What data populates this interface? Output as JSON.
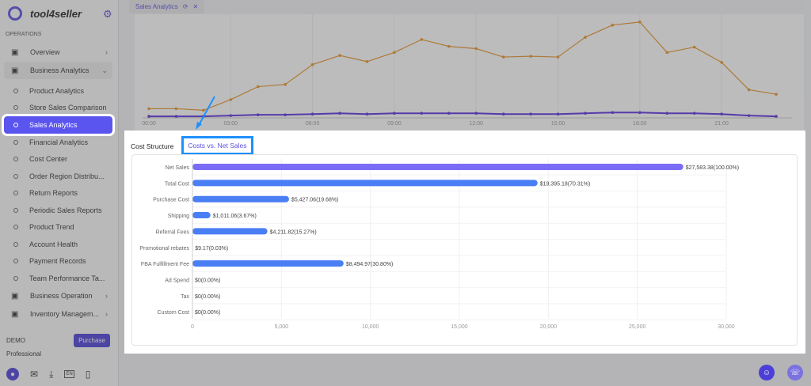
{
  "app": {
    "name": "tool4seller"
  },
  "sidebar": {
    "section": "OPERATIONS",
    "items": [
      {
        "label": "Overview",
        "icon": "home-icon",
        "type": "group"
      },
      {
        "label": "Business Analytics",
        "icon": "presentation-icon",
        "type": "group-open"
      },
      {
        "label": "Product Analytics",
        "type": "sub"
      },
      {
        "label": "Store Sales Comparison",
        "type": "sub"
      },
      {
        "label": "Sales Analytics",
        "type": "sub",
        "active": true
      },
      {
        "label": "Financial Analytics",
        "type": "sub"
      },
      {
        "label": "Cost Center",
        "type": "sub"
      },
      {
        "label": "Order Region Distribu...",
        "type": "sub"
      },
      {
        "label": "Return Reports",
        "type": "sub"
      },
      {
        "label": "Periodic Sales Reports",
        "type": "sub"
      },
      {
        "label": "Product Trend",
        "type": "sub"
      },
      {
        "label": "Account Health",
        "type": "sub"
      },
      {
        "label": "Payment Records",
        "type": "sub"
      },
      {
        "label": "Team Performance Ta...",
        "type": "sub"
      },
      {
        "label": "Business Operation",
        "icon": "store-icon",
        "type": "group"
      },
      {
        "label": "Inventory Managem...",
        "icon": "box-icon",
        "type": "group"
      }
    ],
    "account": "DEMO",
    "plan": "Professional",
    "purchase": "Purchase",
    "lang": "EN"
  },
  "tab": {
    "label": "Sales Analytics"
  },
  "top_chart": {
    "x_ticks": [
      "00:00",
      "03:00",
      "06:00",
      "09:00",
      "12:00",
      "15:00",
      "18:00",
      "21:00"
    ],
    "series": [
      {
        "color": "#e8952a",
        "values": [
          12,
          12,
          10,
          24,
          41,
          44,
          70,
          82,
          74,
          86,
          103,
          94,
          91,
          80,
          81,
          80,
          106,
          122,
          126,
          86,
          93,
          73,
          37,
          31
        ]
      },
      {
        "color": "#5b2ee0",
        "values": [
          2,
          2,
          2,
          3,
          4,
          4,
          5,
          6,
          5,
          6,
          6,
          6,
          6,
          5,
          5,
          5,
          6,
          7,
          7,
          6,
          6,
          5,
          3,
          2
        ]
      }
    ]
  },
  "panel": {
    "tabs": [
      "Cost Structure",
      "Costs vs. Net Sales"
    ]
  },
  "chart_data": {
    "type": "bar",
    "orientation": "horizontal",
    "xlim": [
      0,
      30000
    ],
    "x_ticks": [
      "0",
      "5,000",
      "10,000",
      "15,000",
      "20,000",
      "25,000",
      "30,000"
    ],
    "categories": [
      "Net Sales",
      "Total Cost",
      "Purchase Cost",
      "Shipping",
      "Referral Fees",
      "Promotional rebates",
      "FBA Fulfillment Fee",
      "Ad Spend",
      "Tax",
      "Custom Cost"
    ],
    "values": [
      27583.38,
      19395.18,
      5427.06,
      1011.06,
      4211.82,
      9.17,
      8494.97,
      0,
      0,
      0
    ],
    "labels": [
      "$27,583.38(100.00%)",
      "$19,395.18(70.31%)",
      "$5,427.06(19.68%)",
      "$1,011.06(3.67%)",
      "$4,211.82(15.27%)",
      "$9.17(0.03%)",
      "$8,494.97(30.80%)",
      "$0(0.00%)",
      "$0(0.00%)",
      "$0(0.00%)"
    ],
    "colors": {
      "Net Sales": "#7b6cf6",
      "default": "#4a7ef5"
    },
    "grid": true
  }
}
